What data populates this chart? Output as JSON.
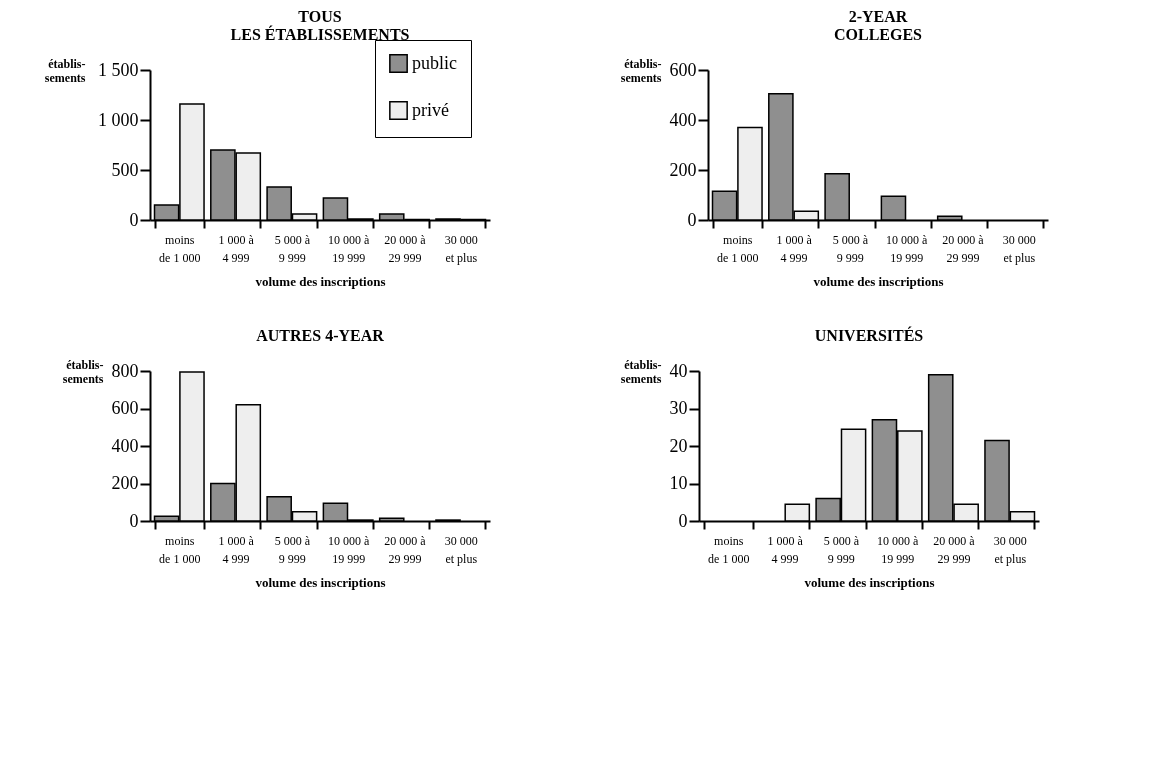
{
  "chart_data": [
    {
      "type": "bar",
      "title": "TOUS\nLES ÉTABLISSEMENTS",
      "xlabel": "volume des inscriptions",
      "ylabel": "établis-\nsements",
      "categories": [
        "moins\nde 1 000",
        "1 000 à\n4 999",
        "5 000 à\n9 999",
        "10 000 à\n19 999",
        "20 000 à\n29 999",
        "30 000\net plus"
      ],
      "ylim": [
        0,
        1500
      ],
      "yticks": [
        0,
        500,
        {
          "value": 1000,
          "label": "1 000"
        },
        {
          "value": 1500,
          "label": "1 500"
        }
      ],
      "legend": "top right",
      "series": [
        {
          "name": "public",
          "color": "#8f8f8f",
          "values": [
            150,
            700,
            330,
            220,
            60,
            10
          ]
        },
        {
          "name": "privé",
          "color": "#eeeeee",
          "values": [
            1160,
            670,
            60,
            10,
            5,
            5
          ]
        }
      ]
    },
    {
      "type": "bar",
      "title": "2-YEAR\nCOLLEGES",
      "xlabel": "volume des inscriptions",
      "ylabel": "établis-\nsements",
      "categories": [
        "moins\nde 1 000",
        "1 000 à\n4 999",
        "5 000 à\n9 999",
        "10 000 à\n19 999",
        "20 000 à\n29 999",
        "30 000\net plus"
      ],
      "ylim": [
        0,
        600
      ],
      "yticks": [
        0,
        200,
        400,
        600
      ],
      "series": [
        {
          "color": "#8f8f8f",
          "values": [
            115,
            505,
            185,
            95,
            15,
            null
          ]
        },
        {
          "color": "#eeeeee",
          "values": [
            370,
            35,
            null,
            null,
            null,
            null
          ]
        }
      ]
    },
    {
      "type": "bar",
      "title": "AUTRES 4-YEAR",
      "xlabel": "volume des inscriptions",
      "ylabel": "établis-\nsements",
      "categories": [
        "moins\nde 1 000",
        "1 000 à\n4 999",
        "5 000 à\n9 999",
        "10 000 à\n19 999",
        "20 000 à\n29 999",
        "30 000\net plus"
      ],
      "ylim": [
        0,
        800
      ],
      "yticks": [
        0,
        200,
        400,
        600,
        800
      ],
      "series": [
        {
          "color": "#8f8f8f",
          "values": [
            25,
            200,
            130,
            95,
            15,
            5
          ]
        },
        {
          "color": "#eeeeee",
          "values": [
            795,
            620,
            50,
            5,
            null,
            null
          ]
        }
      ]
    },
    {
      "type": "bar",
      "title": "UNIVERSITÉS",
      "xlabel": "volume des inscriptions",
      "ylabel": "établis-\nsements",
      "categories": [
        "moins\nde 1 000",
        "1 000 à\n4 999",
        "5 000 à\n9 999",
        "10 000 à\n19 999",
        "20 000 à\n29 999",
        "30 000\net plus"
      ],
      "ylim": [
        0,
        40
      ],
      "yticks": [
        0,
        10,
        20,
        30,
        40
      ],
      "series": [
        {
          "color": "#8f8f8f",
          "values": [
            null,
            null,
            6,
            27,
            39,
            21.5
          ]
        },
        {
          "color": "#eeeeee",
          "values": [
            null,
            4.5,
            24.5,
            24,
            4.5,
            2.5
          ]
        }
      ]
    }
  ]
}
